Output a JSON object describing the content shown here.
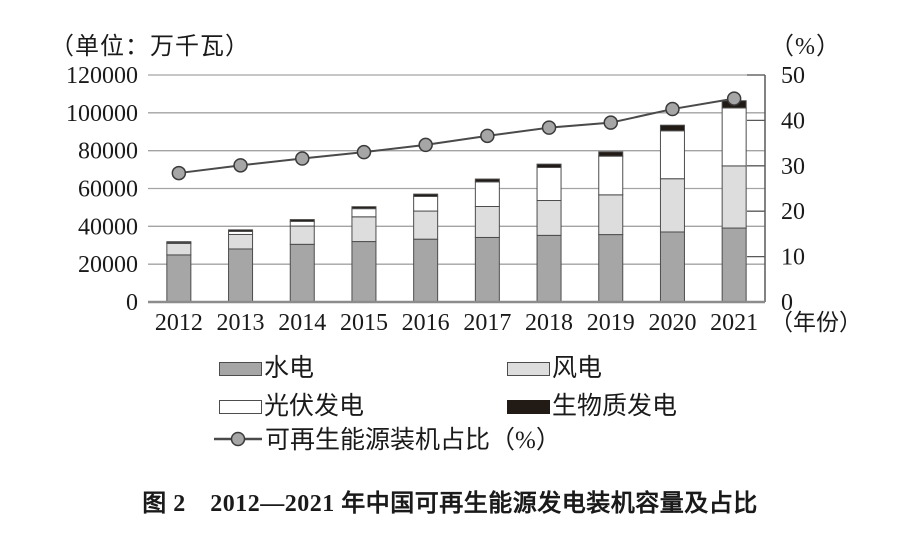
{
  "header": {
    "left_unit": "（单位：万千瓦）",
    "right_unit": "（%）"
  },
  "chart_data": {
    "type": "bar",
    "subtype": "stacked-bar-with-line",
    "title": "图 2　2012—2021 年中国可再生能源发电装机容量及占比",
    "categories": [
      "2012",
      "2013",
      "2014",
      "2015",
      "2016",
      "2017",
      "2018",
      "2019",
      "2020",
      "2021"
    ],
    "series": [
      {
        "name": "水电",
        "color": "#a6a6a6",
        "values": [
          24890,
          28044,
          30486,
          31954,
          33211,
          34119,
          35226,
          35640,
          37016,
          39092
        ]
      },
      {
        "name": "风电",
        "color": "#dddddd",
        "values": [
          6083,
          7652,
          9657,
          13075,
          14864,
          16367,
          18426,
          21005,
          28153,
          32848
        ]
      },
      {
        "name": "光伏发电",
        "color": "#ffffff",
        "values": [
          341,
          1589,
          2486,
          4318,
          7742,
          13025,
          17446,
          20468,
          25343,
          30656
        ]
      },
      {
        "name": "生物质发电",
        "color": "#211a15",
        "values": [
          580,
          850,
          948,
          1031,
          1214,
          1488,
          1781,
          2254,
          2952,
          3798
        ]
      }
    ],
    "line_series": {
      "name": "可再生能源装机占比（%）",
      "values": [
        28.4,
        30.1,
        31.6,
        33.0,
        34.6,
        36.6,
        38.4,
        39.5,
        42.5,
        44.8
      ],
      "line_color": "#4a4a4a",
      "marker_fill": "#a6a6a6",
      "marker_stroke": "#3a3a3a"
    },
    "left_axis": {
      "label": "（单位：万千瓦）",
      "min": 0,
      "max": 120000,
      "ticks": [
        0,
        20000,
        40000,
        60000,
        80000,
        100000,
        120000
      ]
    },
    "right_axis": {
      "label": "（%）",
      "min": 0,
      "max": 50,
      "ticks": [
        0,
        10,
        20,
        30,
        40,
        50
      ]
    },
    "x_axis_suffix": "（年份）",
    "grid": true,
    "legend_position": "bottom",
    "colors": {
      "gridline": "#a3a3a3",
      "baseline": "#8c8c8c",
      "bar_border": "#4d4d4d",
      "right_axis": "#595959"
    }
  },
  "legend": {
    "items": [
      {
        "label": "水电",
        "type": "box",
        "color": "#a6a6a6",
        "border": "#4d4d4d"
      },
      {
        "label": "风电",
        "type": "box",
        "color": "#dddddd",
        "border": "#4d4d4d"
      },
      {
        "label": "光伏发电",
        "type": "box",
        "color": "#ffffff",
        "border": "#4d4d4d"
      },
      {
        "label": "生物质发电",
        "type": "box",
        "color": "#211a15",
        "border": "#211a15"
      },
      {
        "label": "可再生能源装机占比（%）",
        "type": "line",
        "color": "#4a4a4a",
        "marker_fill": "#a6a6a6",
        "marker_stroke": "#3a3a3a"
      }
    ]
  },
  "caption": "图 2　2012—2021 年中国可再生能源发电装机容量及占比"
}
